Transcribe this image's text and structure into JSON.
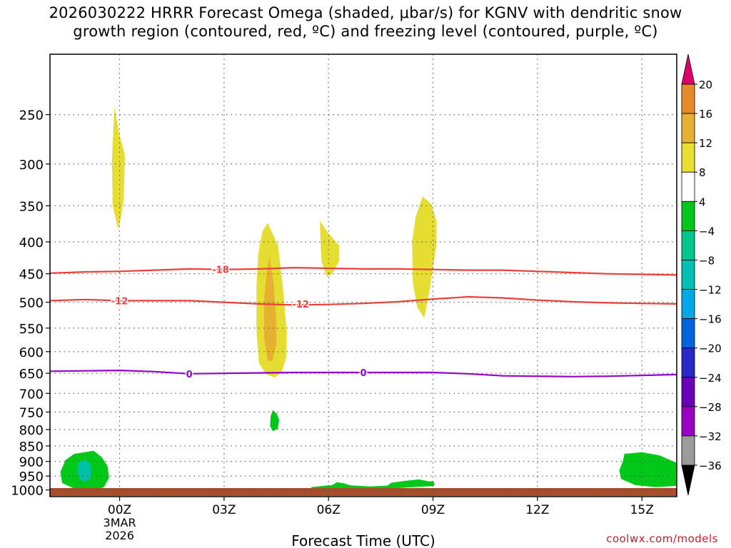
{
  "title_line1": "2026030222 HRRR Forecast Omega (shaded, μbar/s) for KGNV with dendritic snow",
  "title_line2": "growth region (contoured, red, ºC) and freezing level (contoured, purple, ºC)",
  "credit": "coolwx.com/models",
  "chart_data": {
    "type": "time-height cross section",
    "xlabel": "Forecast Time (UTC)",
    "x_units": "hours from 2026-03-02 22Z",
    "xlim": [
      0,
      18
    ],
    "x_ticks": [
      {
        "value": 2,
        "label": "00Z",
        "sublabels": [
          "3MAR",
          "2026"
        ]
      },
      {
        "value": 5,
        "label": "03Z"
      },
      {
        "value": 8,
        "label": "06Z"
      },
      {
        "value": 11,
        "label": "09Z"
      },
      {
        "value": 14,
        "label": "12Z"
      },
      {
        "value": 17,
        "label": "15Z"
      }
    ],
    "y_units": "hPa",
    "y_scale": "log, pressure decreasing upward",
    "ylim": [
      1025,
      200
    ],
    "y_ticks": [
      250,
      300,
      350,
      400,
      450,
      500,
      550,
      600,
      650,
      700,
      750,
      800,
      850,
      900,
      950,
      1000
    ],
    "grid": true,
    "colorbar": {
      "labels": [
        "20",
        "16",
        "12",
        "8",
        "4",
        "−4",
        "−8",
        "−12",
        "−16",
        "−20",
        "−24",
        "−28",
        "−32",
        "−36"
      ],
      "colors": [
        "#e8e8e8",
        "#9b9b9b",
        "#9a00c2",
        "#6a00b8",
        "#2a28c8",
        "#0064e0",
        "#00a8e8",
        "#00c0b4",
        "#00c88a",
        "#00c81a",
        "#ffffff",
        "#e8df30",
        "#e6b030",
        "#e88a2a",
        "#e83830"
      ],
      "top_color": "#e0006a",
      "bottom_color": "#000000"
    },
    "omega_regions": [
      {
        "color": "#e6dd32",
        "points": [
          [
            2.0,
            270
          ],
          [
            2.15,
            290
          ],
          [
            2.12,
            340
          ],
          [
            2.05,
            362
          ],
          [
            1.96,
            382
          ],
          [
            1.8,
            350
          ],
          [
            1.78,
            295
          ],
          [
            1.85,
            243
          ]
        ]
      },
      {
        "color": "#e6dd32",
        "points": [
          [
            6.25,
            373
          ],
          [
            6.55,
            405
          ],
          [
            6.7,
            480
          ],
          [
            6.8,
            560
          ],
          [
            6.78,
            615
          ],
          [
            6.65,
            648
          ],
          [
            6.45,
            660
          ],
          [
            6.2,
            652
          ],
          [
            6.0,
            625
          ],
          [
            5.93,
            555
          ],
          [
            5.93,
            470
          ],
          [
            5.98,
            418
          ],
          [
            6.1,
            385
          ]
        ]
      },
      {
        "color": "#e6b030",
        "points": [
          [
            6.3,
            422
          ],
          [
            6.42,
            465
          ],
          [
            6.5,
            535
          ],
          [
            6.5,
            585
          ],
          [
            6.38,
            622
          ],
          [
            6.25,
            620
          ],
          [
            6.15,
            570
          ],
          [
            6.15,
            495
          ],
          [
            6.22,
            450
          ]
        ]
      },
      {
        "color": "#e6dd32",
        "points": [
          [
            7.75,
            370
          ],
          [
            8.0,
            388
          ],
          [
            8.3,
            405
          ],
          [
            8.3,
            430
          ],
          [
            8.1,
            450
          ],
          [
            7.95,
            455
          ],
          [
            7.8,
            430
          ],
          [
            7.77,
            400
          ]
        ]
      },
      {
        "color": "#e6dd32",
        "points": [
          [
            10.7,
            338
          ],
          [
            10.95,
            348
          ],
          [
            11.1,
            370
          ],
          [
            11.1,
            405
          ],
          [
            11.0,
            440
          ],
          [
            10.9,
            478
          ],
          [
            10.75,
            530
          ],
          [
            10.55,
            510
          ],
          [
            10.42,
            465
          ],
          [
            10.4,
            400
          ],
          [
            10.5,
            365
          ]
        ]
      },
      {
        "color": "#00c818",
        "points": [
          [
            6.4,
            745
          ],
          [
            6.52,
            755
          ],
          [
            6.58,
            773
          ],
          [
            6.54,
            798
          ],
          [
            6.4,
            805
          ],
          [
            6.32,
            790
          ],
          [
            6.34,
            760
          ]
        ]
      },
      {
        "color": "#00c818",
        "points": [
          [
            1.0,
            870
          ],
          [
            1.25,
            865
          ],
          [
            1.48,
            885
          ],
          [
            1.65,
            915
          ],
          [
            1.7,
            955
          ],
          [
            1.55,
            990
          ],
          [
            1.2,
            1003
          ],
          [
            0.75,
            998
          ],
          [
            0.35,
            975
          ],
          [
            0.3,
            935
          ],
          [
            0.45,
            895
          ],
          [
            0.7,
            875
          ]
        ]
      },
      {
        "color": "#00bfa8",
        "points": [
          [
            0.95,
            895
          ],
          [
            1.12,
            900
          ],
          [
            1.2,
            930
          ],
          [
            1.15,
            960
          ],
          [
            1.0,
            972
          ],
          [
            0.85,
            960
          ],
          [
            0.78,
            930
          ],
          [
            0.82,
            905
          ]
        ]
      },
      {
        "color": "#00c818",
        "points": [
          [
            7.5,
            990
          ],
          [
            8.0,
            983
          ],
          [
            8.6,
            983
          ],
          [
            9.2,
            987
          ],
          [
            10.0,
            982
          ],
          [
            10.6,
            971
          ],
          [
            11.0,
            968
          ],
          [
            11.05,
            980
          ],
          [
            11.0,
            986
          ],
          [
            10.4,
            990
          ],
          [
            10.0,
            993
          ],
          [
            9.4,
            995
          ],
          [
            8.6,
            996
          ],
          [
            7.7,
            996
          ],
          [
            7.5,
            994
          ]
        ]
      },
      {
        "color": "#00c818",
        "points": [
          [
            8.1,
            982
          ],
          [
            8.25,
            972
          ],
          [
            8.45,
            976
          ],
          [
            8.7,
            987
          ],
          [
            8.2,
            992
          ],
          [
            8.0,
            990
          ]
        ]
      },
      {
        "color": "#00c818",
        "points": [
          [
            9.8,
            974
          ],
          [
            10.2,
            967
          ],
          [
            10.6,
            962
          ],
          [
            10.85,
            968
          ],
          [
            10.7,
            982
          ],
          [
            10.0,
            990
          ],
          [
            9.7,
            984
          ]
        ]
      },
      {
        "color": "#00c818",
        "points": [
          [
            16.5,
            875
          ],
          [
            17.0,
            870
          ],
          [
            17.5,
            880
          ],
          [
            18.0,
            905
          ],
          [
            18.0,
            985
          ],
          [
            17.4,
            990
          ],
          [
            16.8,
            982
          ],
          [
            16.4,
            960
          ],
          [
            16.35,
            930
          ],
          [
            16.45,
            900
          ]
        ]
      }
    ],
    "contours": [
      {
        "label": "-18",
        "color": "#e8403a",
        "label_x": 4.9,
        "points": [
          [
            0,
            449
          ],
          [
            1,
            447
          ],
          [
            2,
            446
          ],
          [
            3,
            444
          ],
          [
            4,
            442
          ],
          [
            5,
            443
          ],
          [
            6,
            442
          ],
          [
            7,
            440
          ],
          [
            8,
            441
          ],
          [
            9,
            442
          ],
          [
            10,
            442
          ],
          [
            11,
            443
          ],
          [
            12,
            444
          ],
          [
            13,
            444
          ],
          [
            14,
            446
          ],
          [
            15,
            448
          ],
          [
            16,
            450
          ],
          [
            17,
            451
          ],
          [
            18,
            452
          ]
        ]
      },
      {
        "label": "-12",
        "color": "#e8403a",
        "label_x": 2.0,
        "points": [
          [
            0,
            497
          ],
          [
            0.5,
            496
          ],
          [
            1,
            495
          ],
          [
            1.5,
            496
          ],
          [
            2,
            497
          ],
          [
            3,
            497
          ],
          [
            4,
            497
          ],
          [
            5,
            500
          ],
          [
            6,
            503
          ],
          [
            7,
            505
          ],
          [
            8,
            504
          ],
          [
            9,
            502
          ],
          [
            10,
            499
          ],
          [
            11,
            494
          ],
          [
            12,
            490
          ],
          [
            13,
            492
          ],
          [
            14,
            496
          ],
          [
            15,
            499
          ],
          [
            16,
            501
          ],
          [
            17,
            502
          ],
          [
            18,
            503
          ]
        ]
      },
      {
        "label": "-12",
        "color": "#e8403a",
        "label_x": 7.2,
        "hide_label": true,
        "points": []
      },
      {
        "label": "0",
        "color": "#9400cc",
        "label_x": 4.0,
        "points": [
          [
            0,
            645
          ],
          [
            1,
            644
          ],
          [
            2,
            643
          ],
          [
            3,
            646
          ],
          [
            4,
            651
          ],
          [
            5,
            650
          ],
          [
            6,
            649
          ],
          [
            7,
            648
          ],
          [
            8,
            648
          ],
          [
            9,
            648
          ],
          [
            10,
            648
          ],
          [
            11,
            648
          ],
          [
            12,
            651
          ],
          [
            13,
            656
          ],
          [
            14,
            657
          ],
          [
            15,
            658
          ],
          [
            16,
            657
          ],
          [
            17,
            655
          ],
          [
            18,
            653
          ]
        ]
      }
    ],
    "extra_labels": [
      {
        "text": "-12",
        "color": "#e8403a",
        "x": 7.2,
        "p": 503
      },
      {
        "text": "0",
        "color": "#9400cc",
        "x": 9.0,
        "p": 648
      }
    ],
    "surface_band": {
      "color": "#a84c2c"
    }
  }
}
